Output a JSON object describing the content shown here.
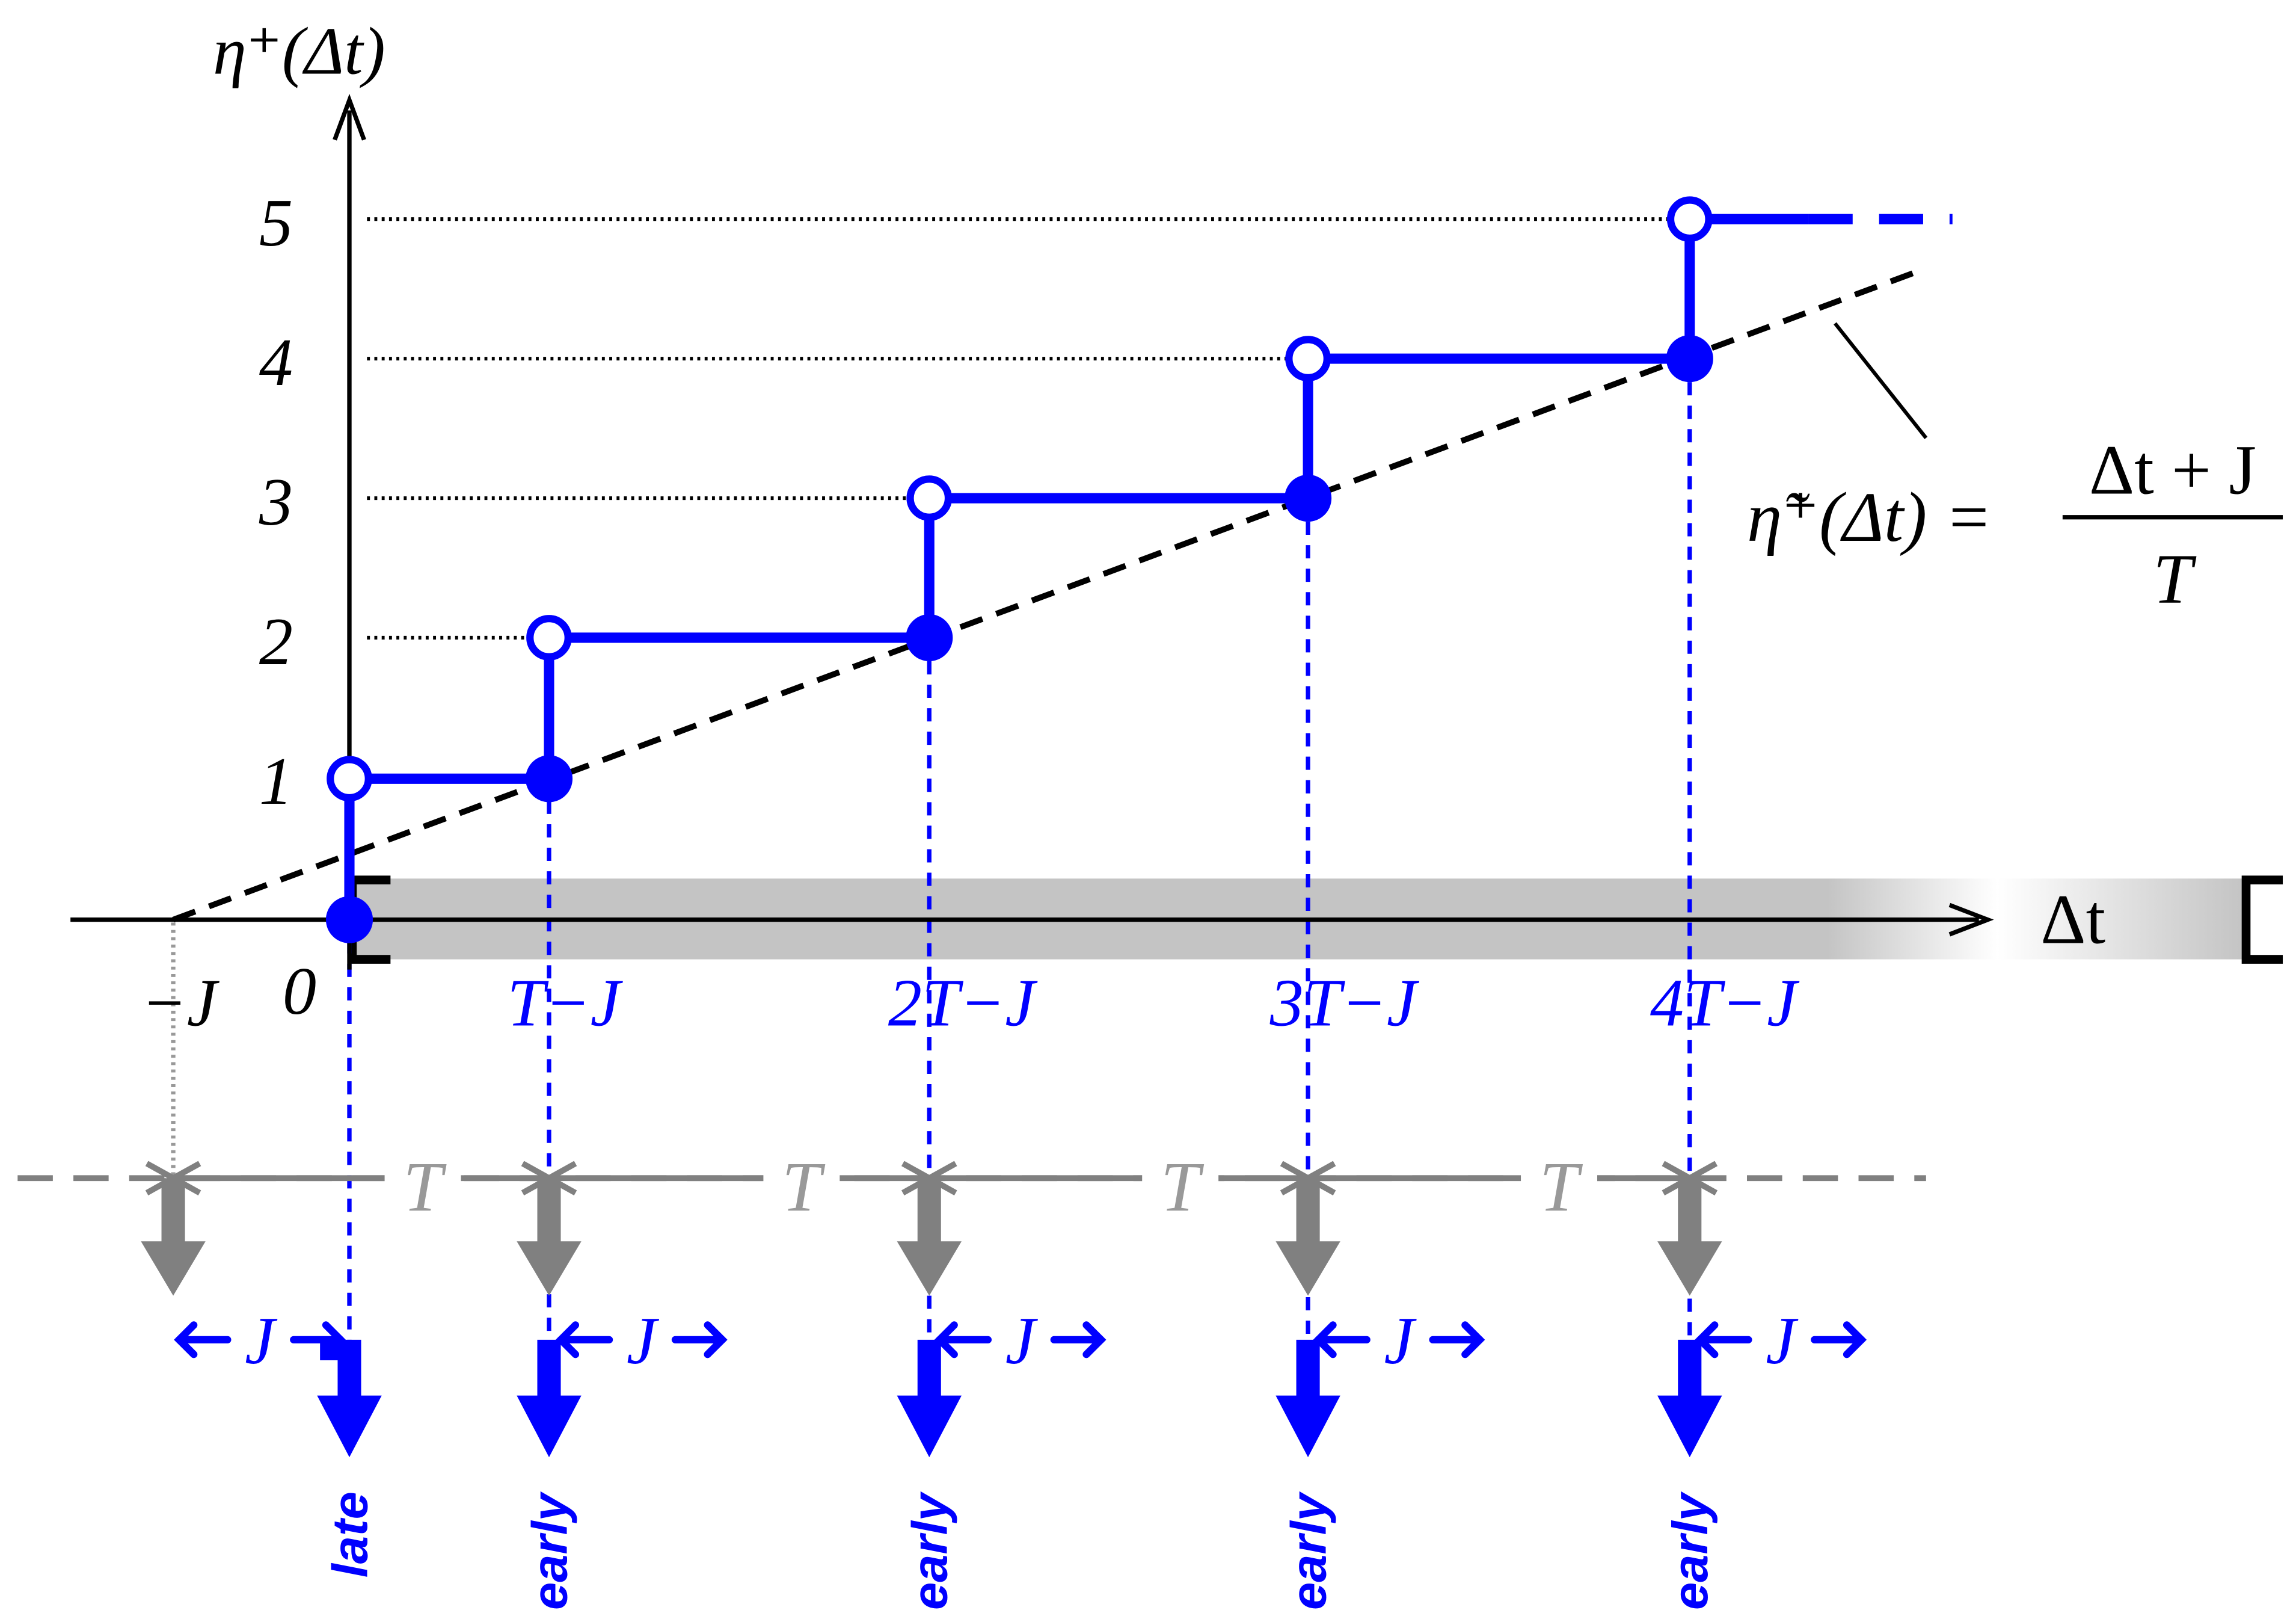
{
  "axes": {
    "y_label": "η⁺(Δt)",
    "x_label": "Δt",
    "y_ticks": [
      "1",
      "2",
      "3",
      "4",
      "5"
    ],
    "x_ticks": [
      "−J",
      "0",
      "T−J",
      "2T−J",
      "3T−J",
      "4T−J"
    ]
  },
  "formula": {
    "lhs": "η̃⁺(Δt) =",
    "numerator": "Δt + J",
    "denominator": "T"
  },
  "timeline": {
    "period_label": "T",
    "jitter_label": "J",
    "events": [
      "late",
      "early",
      "early",
      "early",
      "early"
    ]
  },
  "colors": {
    "blue": "#0000ff",
    "gray": "#808080",
    "light_gray": "#c4c4c4",
    "black": "#000000"
  }
}
